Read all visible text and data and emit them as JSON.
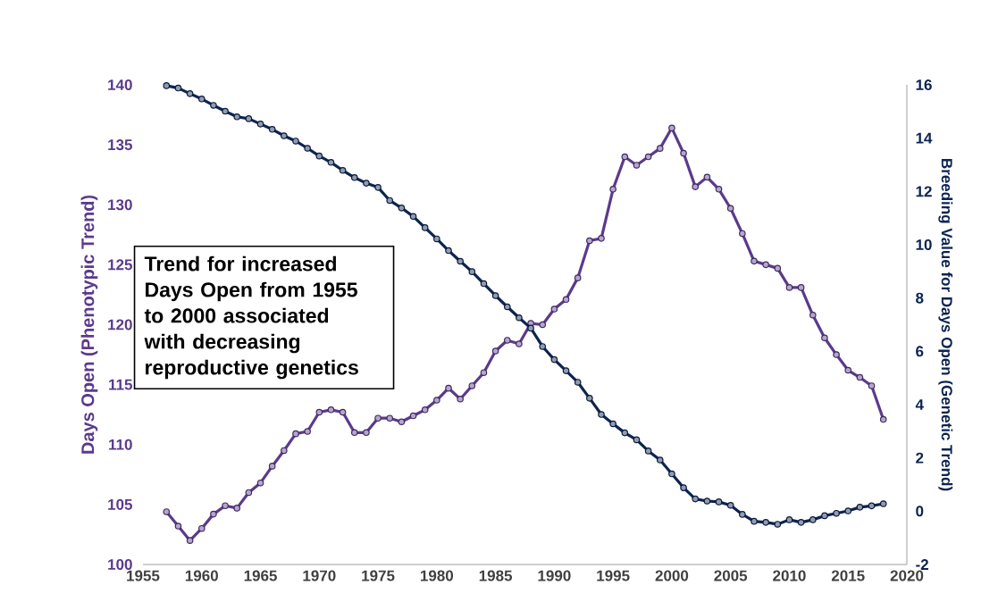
{
  "chart_data": {
    "type": "line",
    "ylabel": "Days Open (Phenotypic Trend)",
    "y2label": "Breeding Value for Days Open (Genetic Trend)",
    "annotations": [
      "Trend for increased Days Open from 1955 to 2000 associated with decreasing reproductive genetics"
    ],
    "x": [
      1957,
      1958,
      1959,
      1960,
      1961,
      1962,
      1963,
      1964,
      1965,
      1966,
      1967,
      1968,
      1969,
      1970,
      1971,
      1972,
      1973,
      1974,
      1975,
      1976,
      1977,
      1978,
      1979,
      1980,
      1981,
      1982,
      1983,
      1984,
      1985,
      1986,
      1987,
      1988,
      1989,
      1990,
      1991,
      1992,
      1993,
      1994,
      1995,
      1996,
      1997,
      1998,
      1999,
      2000,
      2001,
      2002,
      2003,
      2004,
      2005,
      2006,
      2007,
      2008,
      2009,
      2010,
      2011,
      2012,
      2013,
      2014,
      2015,
      2016,
      2017,
      2018
    ],
    "xlim": [
      1955,
      2020
    ],
    "xticks": [
      1955,
      1960,
      1965,
      1970,
      1975,
      1980,
      1985,
      1990,
      1995,
      2000,
      2005,
      2010,
      2015,
      2020
    ],
    "ylim": [
      100,
      140
    ],
    "yticks": [
      100,
      105,
      110,
      115,
      120,
      125,
      130,
      135,
      140
    ],
    "y2lim": [
      -2,
      16
    ],
    "y2ticks": [
      -2,
      0,
      2,
      4,
      6,
      8,
      10,
      12,
      14,
      16
    ],
    "marker": "circle",
    "line_style": "solid",
    "series": [
      {
        "color": "#5b3a8c",
        "values": [
          104.4,
          103.2,
          102.0,
          103.0,
          104.2,
          104.9,
          104.7,
          106.0,
          106.8,
          108.2,
          109.5,
          110.9,
          111.1,
          112.7,
          112.9,
          112.7,
          111.0,
          111.0,
          112.2,
          112.2,
          111.9,
          112.4,
          112.9,
          113.7,
          114.7,
          113.8,
          114.9,
          116.0,
          117.8,
          118.7,
          118.4,
          120.1,
          120.0,
          121.3,
          122.1,
          123.9,
          127.0,
          127.2,
          131.3,
          134.0,
          133.3,
          134.0,
          134.7,
          136.4,
          134.3,
          131.5,
          132.3,
          131.3,
          129.7,
          127.6,
          125.3,
          125.0,
          124.7,
          123.1,
          123.1,
          120.8,
          118.9,
          117.5,
          116.2,
          115.6,
          114.9,
          112.1
        ]
      },
      {
        "color": "#0d2452",
        "axis": "y2",
        "values": [
          15.97,
          15.88,
          15.67,
          15.47,
          15.23,
          15.01,
          14.8,
          14.73,
          14.53,
          14.33,
          14.09,
          13.89,
          13.62,
          13.33,
          13.09,
          12.79,
          12.52,
          12.31,
          12.15,
          11.66,
          11.38,
          11.06,
          10.64,
          10.22,
          9.78,
          9.38,
          8.99,
          8.54,
          8.09,
          7.67,
          7.26,
          6.87,
          6.18,
          5.69,
          5.27,
          4.84,
          4.24,
          3.63,
          3.28,
          2.94,
          2.68,
          2.26,
          1.92,
          1.4,
          0.88,
          0.46,
          0.38,
          0.35,
          0.22,
          -0.12,
          -0.38,
          -0.42,
          -0.49,
          -0.32,
          -0.42,
          -0.32,
          -0.17,
          -0.08,
          0.01,
          0.15,
          0.2,
          0.28
        ]
      }
    ]
  }
}
